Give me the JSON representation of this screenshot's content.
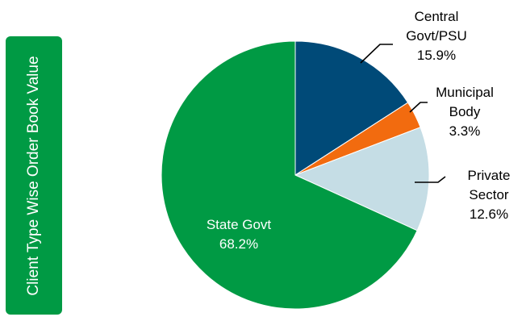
{
  "side_banner": {
    "label": "Client Type Wise Order Book Value"
  },
  "colors": {
    "banner": "#009a44",
    "central_govt": "#004a78",
    "municipal": "#f26b0f",
    "private": "#c5dde5",
    "state_govt": "#009a44"
  },
  "chart_data": {
    "type": "pie",
    "title": "",
    "legend": "none",
    "slices": [
      {
        "name": "Central Govt/PSU",
        "label_lines": [
          "Central",
          "Govt/PSU",
          "15.9%"
        ],
        "value": 15.9,
        "color": "#004a78",
        "label_position": "outside"
      },
      {
        "name": "Municipal Body",
        "label_lines": [
          "Municipal",
          "Body",
          "3.3%"
        ],
        "value": 3.3,
        "color": "#f26b0f",
        "label_position": "outside"
      },
      {
        "name": "Private Sector",
        "label_lines": [
          "Private",
          "Sector",
          "12.6%"
        ],
        "value": 12.6,
        "color": "#c5dde5",
        "label_position": "outside"
      },
      {
        "name": "State Govt",
        "label_lines": [
          "State Govt",
          "68.2%"
        ],
        "value": 68.2,
        "color": "#009a44",
        "label_position": "inside"
      }
    ]
  }
}
